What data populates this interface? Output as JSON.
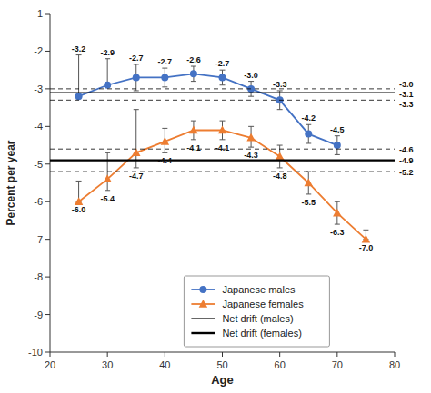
{
  "chart_data": {
    "type": "line",
    "xlabel": "Age",
    "ylabel": "Percent per year",
    "xlim": [
      20,
      80
    ],
    "ylim": [
      -10,
      -1
    ],
    "xticks": [
      20,
      30,
      40,
      50,
      60,
      70,
      80
    ],
    "yticks": [
      -1,
      -2,
      -3,
      -4,
      -5,
      -6,
      -7,
      -8,
      -9,
      -10
    ],
    "grid": false,
    "legend": "lower center",
    "data_labels": true,
    "series": [
      {
        "name": "Japanese males",
        "color": "#4472C4",
        "marker": "circle",
        "line_style": "solid",
        "x": [
          25,
          30,
          35,
          40,
          45,
          50,
          55,
          60,
          65,
          70
        ],
        "values": [
          -3.2,
          -2.9,
          -2.7,
          -2.7,
          -2.6,
          -2.7,
          -3.0,
          -3.3,
          -4.2,
          -4.5
        ],
        "err_low": [
          0.0,
          0.0,
          0.35,
          0.25,
          0.2,
          0.2,
          0.2,
          0.25,
          0.25,
          0.25
        ],
        "err_high": [
          1.1,
          0.7,
          0.35,
          0.25,
          0.2,
          0.2,
          0.2,
          0.25,
          0.25,
          0.25
        ],
        "value_labels": [
          "-3.2",
          "-2.9",
          "-2.7",
          "-2.7",
          "-2.6",
          "-2.7",
          "-3.0",
          "-3.3",
          "-4.2",
          "-4.5"
        ]
      },
      {
        "name": "Japanese females",
        "color": "#ED7D31",
        "marker": "triangle",
        "line_style": "solid",
        "x": [
          25,
          30,
          35,
          40,
          45,
          50,
          55,
          60,
          65,
          70,
          75
        ],
        "values": [
          -6.0,
          -5.4,
          -4.7,
          -4.4,
          -4.1,
          -4.1,
          -4.3,
          -4.8,
          -5.5,
          -6.3,
          -7.0
        ],
        "err_low": [
          0.0,
          0.3,
          0.4,
          0.3,
          0.25,
          0.25,
          0.25,
          0.3,
          0.3,
          0.3,
          0.0
        ],
        "err_high": [
          0.55,
          0.7,
          1.15,
          0.35,
          0.25,
          0.25,
          0.3,
          0.3,
          0.3,
          0.3,
          0.25
        ],
        "value_labels": [
          "-6.0",
          "-5.4",
          "-4.7",
          "-4.4",
          "-4.1",
          "-4.1",
          "-4.3",
          "-4.8",
          "-5.5",
          "-6.3",
          "-7.0"
        ]
      },
      {
        "name": "Net drift (males)",
        "type": "hline",
        "color": "#000000",
        "line_style": "solid",
        "values": [
          -3.1
        ],
        "upper": [
          -3.0
        ],
        "lower": [
          -3.3
        ]
      },
      {
        "name": "Net drift (females)",
        "type": "hline",
        "color": "#000000",
        "line_style": "solid",
        "values": [
          -4.9
        ],
        "upper": [
          -4.6
        ],
        "lower": [
          -5.2
        ]
      }
    ],
    "annotations": [
      {
        "text": "-3.0",
        "y": -3.0
      },
      {
        "text": "-3.1",
        "y": -3.1
      },
      {
        "text": "-3.3",
        "y": -3.3
      },
      {
        "text": "-4.6",
        "y": -4.6
      },
      {
        "text": "-4.9",
        "y": -4.9
      },
      {
        "text": "-5.2",
        "y": -5.2
      }
    ]
  }
}
